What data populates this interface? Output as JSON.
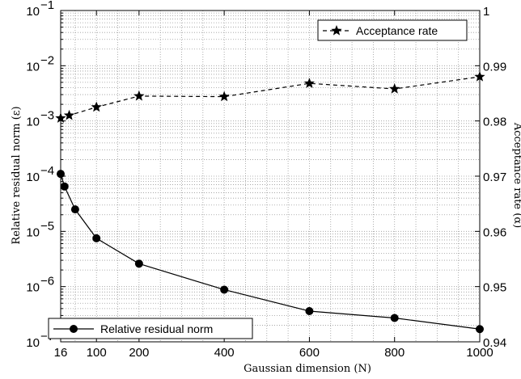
{
  "chart_data": {
    "type": "line",
    "xlabel": "Gaussian dimension (N)",
    "ylabel_left": "Relative residual norm (ε)",
    "ylabel_right": "Acceptance rate (α)",
    "x_ticks": [
      16,
      100,
      200,
      400,
      600,
      800,
      1000
    ],
    "xlim": [
      16,
      1000
    ],
    "ylim_left": [
      1e-07,
      0.1
    ],
    "y_scale_left": "log",
    "ylim_right": [
      0.94,
      1.0
    ],
    "y_scale_right": "linear",
    "y_ticks_left": [
      {
        "value": 1e-07,
        "base": "10",
        "exp": "−7"
      },
      {
        "value": 1e-06,
        "base": "10",
        "exp": "−6"
      },
      {
        "value": 1e-05,
        "base": "10",
        "exp": "−5"
      },
      {
        "value": 0.0001,
        "base": "10",
        "exp": "−4"
      },
      {
        "value": 0.001,
        "base": "10",
        "exp": "−3"
      },
      {
        "value": 0.01,
        "base": "10",
        "exp": "−2"
      },
      {
        "value": 0.1,
        "base": "10",
        "exp": "−1"
      }
    ],
    "y_ticks_right": [
      "0.94",
      "0.95",
      "0.96",
      "0.97",
      "0.98",
      "0.99",
      "1"
    ],
    "grid": true,
    "series": [
      {
        "name": "Relative residual norm",
        "axis": "left",
        "marker": "circle",
        "line_style": "solid",
        "x": [
          16,
          25,
          50,
          100,
          200,
          400,
          600,
          800,
          1000
        ],
        "y": [
          0.00011,
          6.5e-05,
          2.5e-05,
          7.5e-06,
          2.6e-06,
          8.8e-07,
          3.6e-07,
          2.7e-07,
          1.7e-07
        ]
      },
      {
        "name": "Acceptance rate",
        "axis": "right",
        "marker": "star",
        "line_style": "dashed",
        "x": [
          16,
          36,
          100,
          200,
          400,
          600,
          800,
          1000
        ],
        "y": [
          0.9805,
          0.981,
          0.9825,
          0.9845,
          0.9844,
          0.9868,
          0.9858,
          0.988
        ]
      }
    ],
    "legends": [
      {
        "series": "Acceptance rate",
        "placement": "top-right"
      },
      {
        "series": "Relative residual norm",
        "placement": "bottom-left"
      }
    ]
  }
}
